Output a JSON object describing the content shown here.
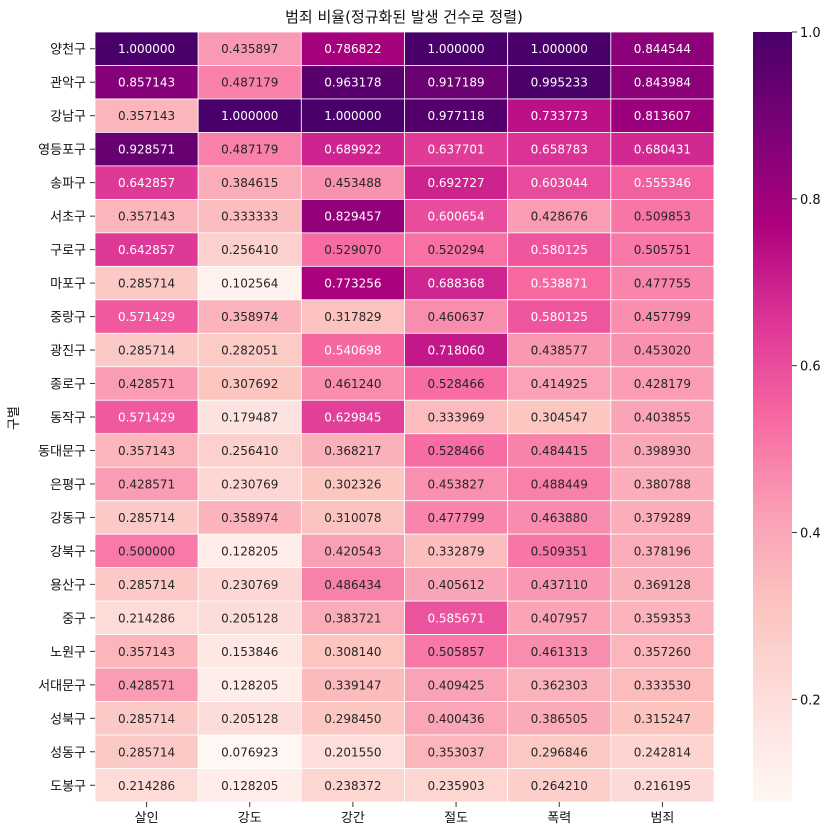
{
  "chart_data": {
    "type": "heatmap",
    "title": "범죄 비율(정규화된 발생 건수로 정렬)",
    "ylabel": "구별",
    "xlabel": "",
    "columns": [
      "살인",
      "강도",
      "강간",
      "절도",
      "폭력",
      "범죄"
    ],
    "rows": [
      "양천구",
      "관악구",
      "강남구",
      "영등포구",
      "송파구",
      "서초구",
      "구로구",
      "마포구",
      "중랑구",
      "광진구",
      "종로구",
      "동작구",
      "동대문구",
      "은평구",
      "강동구",
      "강북구",
      "용산구",
      "중구",
      "노원구",
      "서대문구",
      "성북구",
      "성동구",
      "도봉구"
    ],
    "values": [
      [
        1.0,
        0.435897,
        0.786822,
        1.0,
        1.0,
        0.844544
      ],
      [
        0.857143,
        0.487179,
        0.963178,
        0.917189,
        0.995233,
        0.843984
      ],
      [
        0.357143,
        1.0,
        1.0,
        0.977118,
        0.733773,
        0.813607
      ],
      [
        0.928571,
        0.487179,
        0.689922,
        0.637701,
        0.658783,
        0.680431
      ],
      [
        0.642857,
        0.384615,
        0.453488,
        0.692727,
        0.603044,
        0.555346
      ],
      [
        0.357143,
        0.333333,
        0.829457,
        0.600654,
        0.428676,
        0.509853
      ],
      [
        0.642857,
        0.25641,
        0.52907,
        0.520294,
        0.580125,
        0.505751
      ],
      [
        0.285714,
        0.102564,
        0.773256,
        0.688368,
        0.538871,
        0.477755
      ],
      [
        0.571429,
        0.358974,
        0.317829,
        0.460637,
        0.580125,
        0.457799
      ],
      [
        0.285714,
        0.282051,
        0.540698,
        0.71806,
        0.438577,
        0.45302
      ],
      [
        0.428571,
        0.307692,
        0.46124,
        0.528466,
        0.414925,
        0.428179
      ],
      [
        0.571429,
        0.179487,
        0.629845,
        0.333969,
        0.304547,
        0.403855
      ],
      [
        0.357143,
        0.25641,
        0.368217,
        0.528466,
        0.484415,
        0.39893
      ],
      [
        0.428571,
        0.230769,
        0.302326,
        0.453827,
        0.488449,
        0.380788
      ],
      [
        0.285714,
        0.358974,
        0.310078,
        0.477799,
        0.46388,
        0.379289
      ],
      [
        0.5,
        0.128205,
        0.420543,
        0.332879,
        0.509351,
        0.378196
      ],
      [
        0.285714,
        0.230769,
        0.486434,
        0.405612,
        0.43711,
        0.369128
      ],
      [
        0.214286,
        0.205128,
        0.383721,
        0.585671,
        0.407957,
        0.359353
      ],
      [
        0.357143,
        0.153846,
        0.30814,
        0.505857,
        0.461313,
        0.35726
      ],
      [
        0.428571,
        0.128205,
        0.339147,
        0.409425,
        0.362303,
        0.33353
      ],
      [
        0.285714,
        0.205128,
        0.29845,
        0.400436,
        0.386505,
        0.315247
      ],
      [
        0.285714,
        0.076923,
        0.20155,
        0.353037,
        0.296846,
        0.242814
      ],
      [
        0.214286,
        0.128205,
        0.238372,
        0.235903,
        0.26421,
        0.216195
      ]
    ],
    "colormap": "RdPu",
    "vmin": 0.076923,
    "vmax": 1.0,
    "colorbar_ticks": [
      0.2,
      0.4,
      0.6,
      0.8,
      1.0
    ],
    "colorbar_tick_labels": [
      "0.2",
      "0.4",
      "0.6",
      "0.8",
      "1.0"
    ],
    "cell_format": "0.000000",
    "colors": {
      "cmap_stops": [
        "#fff7f3",
        "#fde0dd",
        "#fcc5c0",
        "#fa9fb5",
        "#f768a1",
        "#dd3497",
        "#ae017e",
        "#7a0177",
        "#49006a"
      ],
      "grid_line": "#ffffff",
      "text_dark": "#262626",
      "text_light": "#ffffff"
    }
  }
}
